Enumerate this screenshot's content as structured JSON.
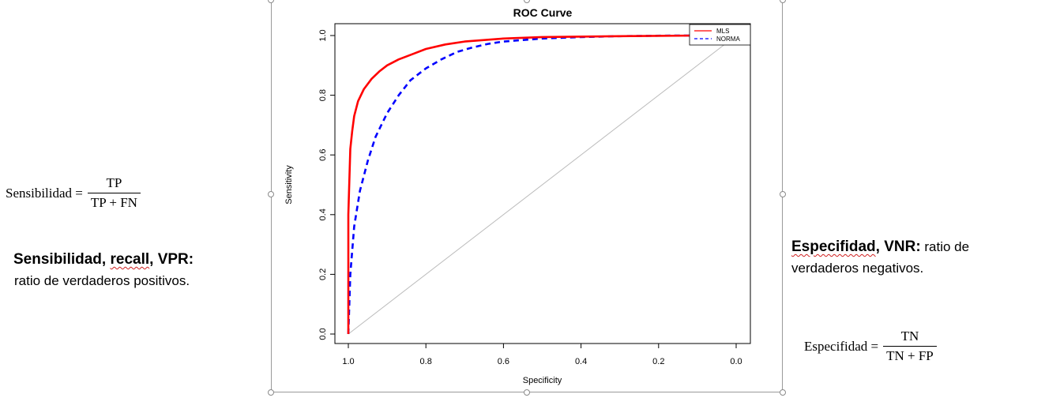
{
  "left_panel": {
    "formula": {
      "lhs": "Sensibilidad =",
      "numerator": "TP",
      "denominator": "TP + FN"
    },
    "heading_part1": "Sensibilidad, ",
    "heading_part2": "recall",
    "heading_part3": ", VPR:",
    "description": "ratio de verdaderos positivos."
  },
  "right_panel": {
    "heading_part1": "Especifidad",
    "heading_part2": ", VNR:",
    "heading_trailing": " ratio de",
    "description": "verdaderos negativos.",
    "formula": {
      "lhs": "Especifidad =",
      "numerator": "TN",
      "denominator": "TN + FP"
    }
  },
  "chart_data": {
    "type": "line",
    "title": "ROC Curve",
    "xlabel": "Specificity",
    "ylabel": "Sensitivity",
    "xlim": [
      1.0,
      0.0
    ],
    "ylim": [
      0.0,
      1.0
    ],
    "x_reversed": true,
    "xticks": [
      "1.0",
      "0.8",
      "0.6",
      "0.4",
      "0.2",
      "0.0"
    ],
    "yticks": [
      "0.0",
      "0.2",
      "0.4",
      "0.6",
      "0.8",
      "1.0"
    ],
    "legend_position": "top-right",
    "grid": false,
    "series": [
      {
        "name": "MLS",
        "color": "#ff0000",
        "style": "solid",
        "x": [
          1.0,
          1.0,
          0.995,
          0.99,
          0.985,
          0.975,
          0.96,
          0.94,
          0.92,
          0.9,
          0.87,
          0.83,
          0.8,
          0.75,
          0.7,
          0.6,
          0.5,
          0.3,
          0.1,
          0.0
        ],
        "y": [
          0.0,
          0.4,
          0.62,
          0.68,
          0.73,
          0.78,
          0.82,
          0.855,
          0.88,
          0.9,
          0.92,
          0.94,
          0.955,
          0.97,
          0.98,
          0.99,
          0.995,
          0.998,
          1.0,
          1.0
        ]
      },
      {
        "name": "NORMA",
        "color": "#0000ff",
        "style": "dashed",
        "x": [
          1.0,
          0.995,
          0.985,
          0.97,
          0.95,
          0.93,
          0.9,
          0.87,
          0.84,
          0.8,
          0.76,
          0.72,
          0.68,
          0.64,
          0.6,
          0.5,
          0.4,
          0.3,
          0.15,
          0.0
        ],
        "y": [
          0.0,
          0.2,
          0.36,
          0.48,
          0.58,
          0.66,
          0.74,
          0.8,
          0.85,
          0.89,
          0.92,
          0.945,
          0.96,
          0.972,
          0.98,
          0.99,
          0.995,
          0.998,
          1.0,
          1.0
        ]
      },
      {
        "name": "",
        "color": "#bbbbbb",
        "style": "solid",
        "x": [
          1.0,
          0.0
        ],
        "y": [
          0.0,
          1.0
        ]
      }
    ]
  }
}
